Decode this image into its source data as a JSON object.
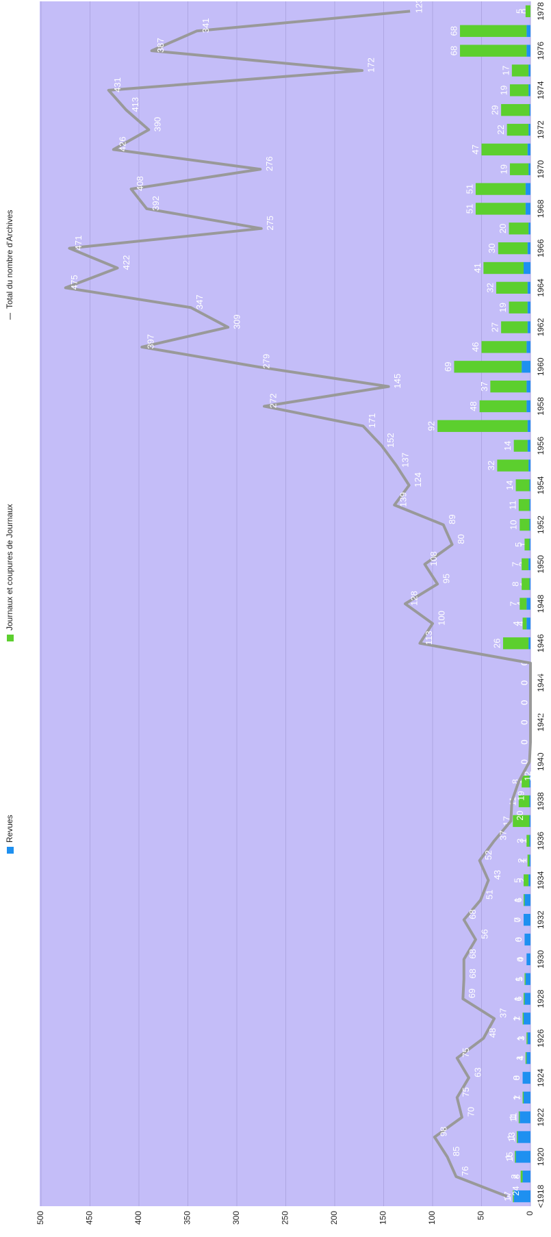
{
  "chart_data": {
    "type": "bar",
    "stacked": true,
    "grid": true,
    "legend": "top",
    "categories": [
      "<1918",
      null,
      "1920",
      null,
      "1922",
      null,
      "1924",
      null,
      "1926",
      null,
      "1928",
      null,
      "1930",
      null,
      "1932",
      null,
      "1934",
      null,
      "1936",
      null,
      "1938",
      null,
      "1940",
      null,
      "1942",
      null,
      "1944",
      null,
      "1946",
      null,
      "1948",
      null,
      "1950",
      null,
      "1952",
      null,
      "1954",
      null,
      "1956",
      null,
      "1958",
      null,
      "1960",
      null,
      "1962",
      null,
      "1964",
      null,
      "1966",
      null,
      "1968",
      null,
      "1970",
      null,
      "1972",
      null,
      "1974",
      null,
      "1976",
      null,
      "1978"
    ],
    "series": [
      {
        "name": "Revues",
        "type": "bar",
        "color": "#1e90f0",
        "values": [
          17,
          8,
          15,
          13,
          11,
          7,
          8,
          4,
          3,
          7,
          6,
          5,
          4,
          6,
          7,
          6,
          2,
          1,
          1,
          1,
          1,
          1,
          0,
          0,
          0,
          0,
          0,
          0,
          2,
          4,
          4,
          1,
          2,
          1,
          1,
          1,
          1,
          2,
          3,
          3,
          4,
          4,
          9,
          4,
          3,
          3,
          3,
          7,
          3,
          2,
          5,
          5,
          2,
          3,
          2,
          1,
          2,
          2,
          4,
          4,
          0
        ]
      },
      {
        "name": "Journaux et coupures de Journaux",
        "type": "bar",
        "color": "#5ccf2e",
        "values": [
          1,
          2,
          1,
          1,
          1,
          1,
          0,
          1,
          1,
          1,
          1,
          1,
          0,
          0,
          0,
          1,
          5,
          2,
          3,
          17,
          11,
          8,
          0,
          0,
          0,
          0,
          0,
          0,
          26,
          4,
          7,
          8,
          7,
          5,
          10,
          11,
          14,
          32,
          14,
          92,
          48,
          37,
          69,
          46,
          27,
          19,
          32,
          41,
          30,
          20,
          51,
          51,
          19,
          47,
          22,
          29,
          19,
          17,
          68,
          68,
          5
        ]
      },
      {
        "name": "Total du nombre d'Archives",
        "type": "line",
        "color": "#999999",
        "values": [
          24,
          76,
          85,
          98,
          70,
          75,
          63,
          75,
          48,
          37,
          69,
          68,
          68,
          56,
          68,
          51,
          43,
          52,
          37,
          20,
          19,
          12,
          1,
          0,
          0,
          0,
          0,
          0,
          113,
          100,
          128,
          95,
          108,
          80,
          89,
          139,
          124,
          137,
          152,
          171,
          272,
          145,
          279,
          397,
          309,
          347,
          475,
          422,
          471,
          275,
          392,
          408,
          276,
          426,
          390,
          413,
          431,
          172,
          387,
          341,
          123
        ]
      }
    ],
    "ylim": [
      0,
      500
    ],
    "yticks": [
      0,
      50,
      100,
      150,
      200,
      250,
      300,
      350,
      400,
      450,
      500
    ]
  }
}
